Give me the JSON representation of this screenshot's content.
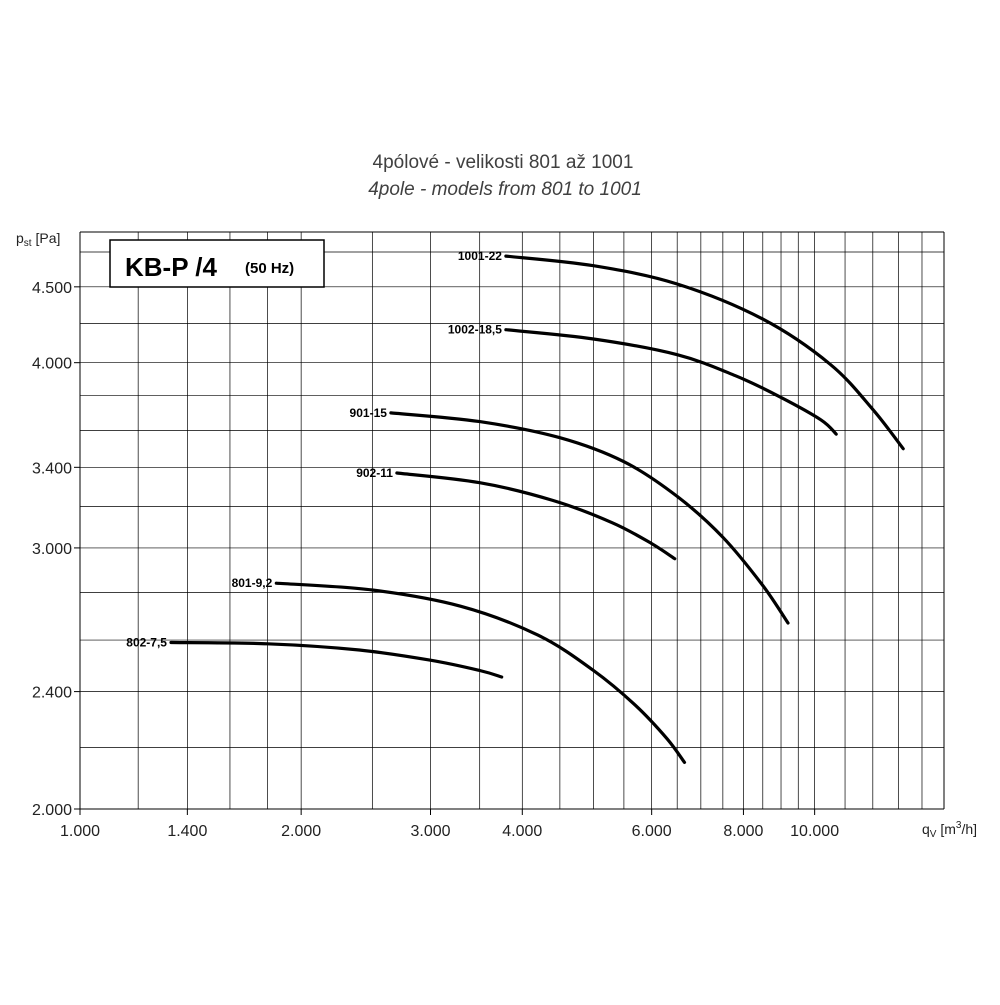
{
  "chart_data": {
    "type": "line",
    "title": "4pólové - velikosti 801 až 1001",
    "subtitle": "4pole - models from 801 to 1001",
    "box_title": "KB-P /4",
    "box_subtitle": "(50 Hz)",
    "xlabel": {
      "main": "q",
      "sub": "V",
      "unit_pre": " [m",
      "unit_sup": "3",
      "unit_post": "/h]"
    },
    "ylabel": {
      "main": "p",
      "sub": "st",
      "unit": " [Pa]"
    },
    "x_scale": "log",
    "y_scale": "log",
    "xlim": [
      1000,
      15000
    ],
    "ylim": [
      2000,
      4900
    ],
    "x_tick_labels": [
      {
        "value": 1000,
        "label": "1.000"
      },
      {
        "value": 1400,
        "label": "1.400"
      },
      {
        "value": 2000,
        "label": "2.000"
      },
      {
        "value": 3000,
        "label": "3.000"
      },
      {
        "value": 4000,
        "label": "4.000"
      },
      {
        "value": 6000,
        "label": "6.000"
      },
      {
        "value": 8000,
        "label": "8.000"
      },
      {
        "value": 10000,
        "label": "10.000"
      }
    ],
    "y_tick_labels": [
      {
        "value": 2000,
        "label": "2.000"
      },
      {
        "value": 2400,
        "label": "2.400"
      },
      {
        "value": 3000,
        "label": "3.000"
      },
      {
        "value": 3400,
        "label": "3.400"
      },
      {
        "value": 4000,
        "label": "4.000"
      },
      {
        "value": 4500,
        "label": "4.500"
      }
    ],
    "x_grid": [
      1000,
      1200,
      1400,
      1600,
      1800,
      2000,
      2500,
      3000,
      3500,
      4000,
      4500,
      5000,
      5500,
      6000,
      6500,
      7000,
      7500,
      8000,
      8500,
      9000,
      9500,
      10000,
      11000,
      12000,
      13000,
      14000,
      15000
    ],
    "y_grid": [
      2000,
      2200,
      2400,
      2600,
      2800,
      3000,
      3200,
      3400,
      3600,
      3800,
      4000,
      4250,
      4500,
      4750
    ],
    "series": [
      {
        "name": "1001-22",
        "points": [
          [
            3800,
            4720
          ],
          [
            5000,
            4650
          ],
          [
            6500,
            4520
          ],
          [
            8500,
            4280
          ],
          [
            10500,
            3990
          ],
          [
            12000,
            3720
          ],
          [
            13200,
            3500
          ]
        ]
      },
      {
        "name": "1002-18,5",
        "points": [
          [
            3800,
            4210
          ],
          [
            5000,
            4150
          ],
          [
            6500,
            4050
          ],
          [
            7800,
            3920
          ],
          [
            9000,
            3790
          ],
          [
            10200,
            3660
          ],
          [
            10700,
            3580
          ]
        ]
      },
      {
        "name": "901-15",
        "points": [
          [
            2650,
            3700
          ],
          [
            3500,
            3650
          ],
          [
            4500,
            3560
          ],
          [
            5500,
            3430
          ],
          [
            6500,
            3250
          ],
          [
            7500,
            3050
          ],
          [
            8500,
            2830
          ],
          [
            9200,
            2670
          ]
        ]
      },
      {
        "name": "902-11",
        "points": [
          [
            2700,
            3370
          ],
          [
            3500,
            3320
          ],
          [
            4400,
            3230
          ],
          [
            5300,
            3120
          ],
          [
            6000,
            3020
          ],
          [
            6450,
            2950
          ]
        ]
      },
      {
        "name": "801-9,2",
        "points": [
          [
            1850,
            2840
          ],
          [
            2500,
            2810
          ],
          [
            3300,
            2740
          ],
          [
            4200,
            2620
          ],
          [
            5000,
            2480
          ],
          [
            5700,
            2350
          ],
          [
            6300,
            2230
          ],
          [
            6650,
            2150
          ]
        ]
      },
      {
        "name": "802-7,5",
        "points": [
          [
            1330,
            2590
          ],
          [
            1800,
            2585
          ],
          [
            2400,
            2560
          ],
          [
            3000,
            2520
          ],
          [
            3500,
            2480
          ],
          [
            3750,
            2455
          ]
        ]
      }
    ]
  }
}
